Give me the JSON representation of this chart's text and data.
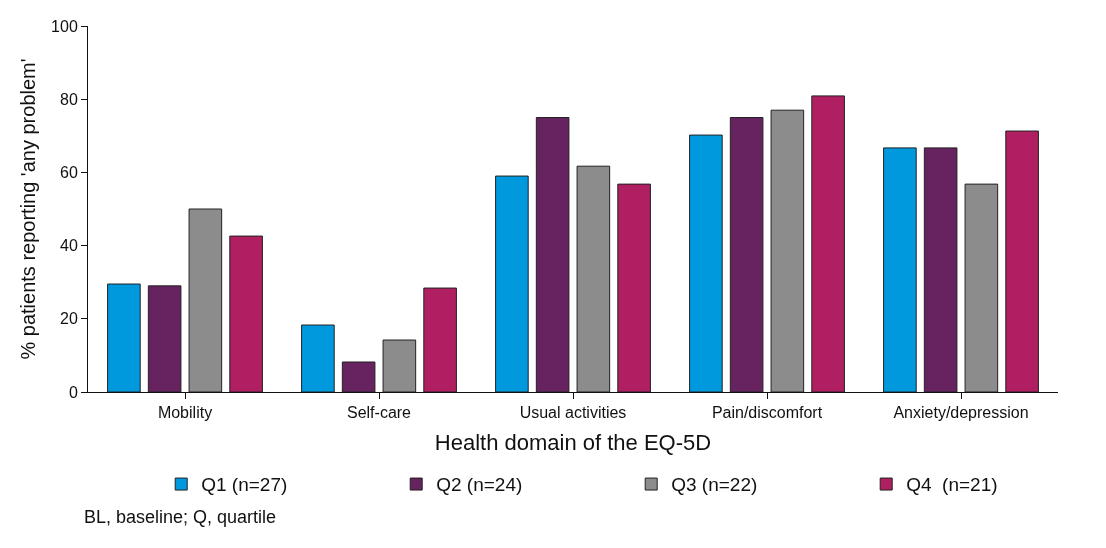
{
  "chart_data": {
    "type": "bar",
    "xlabel": "Health domain of the EQ-5D",
    "ylabel": "% patients reporting 'any problem'",
    "categories": [
      "Mobility",
      "Self-care",
      "Usual activities",
      "Pain/discomfort",
      "Anxiety/depression"
    ],
    "series": [
      {
        "name": "Q1 (n=27)",
        "color": "#0099dd",
        "values": [
          29.5,
          18.3,
          59,
          70.2,
          66.7
        ]
      },
      {
        "name": "Q2 (n=24)",
        "color": "#662360",
        "values": [
          29,
          8.2,
          75,
          75,
          66.7
        ]
      },
      {
        "name": "Q3 (n=22)",
        "color": "#8c8c8c",
        "values": [
          50,
          14.2,
          61.7,
          77,
          56.8
        ]
      },
      {
        "name": "Q4  (n=21)",
        "color": "#b01f62",
        "values": [
          42.6,
          28.4,
          56.8,
          80.9,
          71.3
        ]
      }
    ],
    "ylim": [
      0,
      100
    ],
    "yticks": [
      0,
      20,
      40,
      60,
      80,
      100
    ],
    "grid": false,
    "legend": "bottom",
    "annotations": [
      "BL, baseline; Q, quartile"
    ]
  }
}
